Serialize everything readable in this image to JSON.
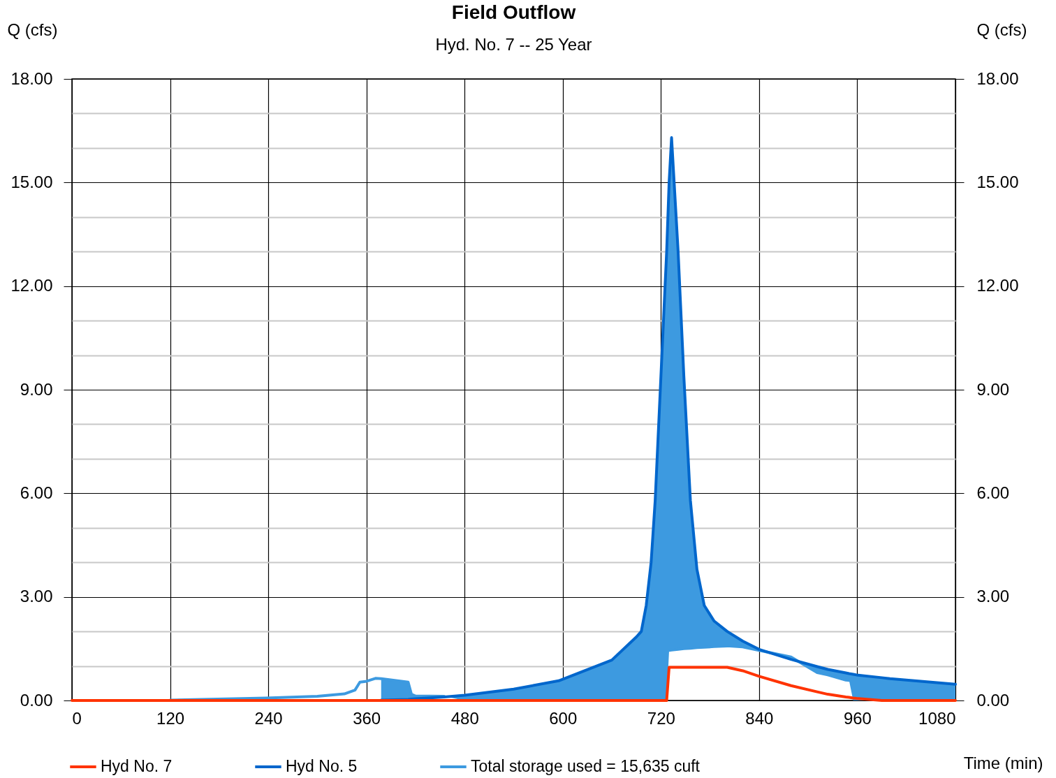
{
  "chart_data": {
    "type": "line",
    "title": "Field Outflow",
    "subtitle": "Hyd. No. 7 -- 25 Year",
    "xlabel": "Time (min)",
    "ylabel": "Q (cfs)",
    "y2label": "Q (cfs)",
    "x": [
      0,
      120,
      237,
      300,
      333,
      346,
      352,
      359,
      371,
      378,
      411,
      415,
      420,
      455,
      480,
      540,
      595,
      660,
      690,
      696,
      702,
      708,
      713,
      720,
      727,
      730,
      733,
      741,
      748,
      756,
      764,
      773,
      785,
      801,
      820,
      840,
      879,
      911,
      924,
      946,
      950,
      955,
      959,
      990,
      1000,
      1080
    ],
    "series": [
      {
        "name": "Hyd No. 7",
        "color": "#ff3300",
        "values": [
          0,
          0,
          0,
          0,
          0,
          0,
          0,
          0,
          0,
          0,
          0,
          0,
          0,
          0,
          0,
          0,
          0,
          0,
          0,
          0,
          0,
          0,
          0,
          0,
          0,
          0.96,
          0.96,
          0.96,
          0.96,
          0.96,
          0.96,
          0.96,
          0.96,
          0.96,
          0.86,
          0.7,
          0.43,
          0.25,
          0.18,
          0.1,
          0.09,
          0.07,
          0.06,
          0,
          0,
          0
        ]
      },
      {
        "name": "Hyd No. 5",
        "color": "#0066cc",
        "values": [
          null,
          null,
          null,
          null,
          null,
          null,
          null,
          null,
          null,
          0.01,
          0.03,
          0.04,
          0.05,
          0.1,
          0.15,
          0.33,
          0.57,
          1.17,
          1.84,
          2.0,
          2.75,
          4.0,
          5.8,
          9.4,
          13.0,
          15.0,
          16.3,
          13.0,
          9.4,
          5.8,
          3.8,
          2.75,
          2.3,
          2.0,
          1.72,
          1.48,
          1.19,
          0.98,
          0.9,
          0.8,
          0.78,
          0.76,
          0.74,
          0.66,
          0.63,
          0.47
        ]
      },
      {
        "name": "Total storage used = 15,635 cuft",
        "color": "#3d9ae0",
        "values": [
          null,
          0.01,
          0.07,
          0.12,
          0.19,
          0.3,
          0.53,
          0.55,
          0.64,
          0.63,
          0.53,
          0.18,
          0.13,
          0.12,
          null,
          null,
          null,
          null,
          null,
          null,
          null,
          null,
          null,
          null,
          null,
          1.45,
          1.46,
          1.48,
          1.5,
          1.51,
          1.53,
          1.54,
          1.56,
          1.58,
          1.55,
          1.45,
          1.26,
          0.81,
          0.74,
          0.59,
          0.58,
          null,
          null,
          null,
          null,
          null
        ],
        "lower": [
          null,
          null,
          null,
          null,
          null,
          null,
          null,
          null,
          null,
          0.63,
          0.53,
          0.18,
          0.13,
          0.12,
          0,
          0,
          0,
          0,
          0,
          0,
          0,
          0,
          0,
          0,
          0,
          1.45,
          1.46,
          1.48,
          1.5,
          1.51,
          1.53,
          1.54,
          1.56,
          1.58,
          1.55,
          1.45,
          1.26,
          0.81,
          0.74,
          0.59,
          0.58,
          0,
          0,
          0,
          0,
          0
        ],
        "upper": [
          null,
          null,
          null,
          null,
          null,
          null,
          null,
          null,
          null,
          0.01,
          0.03,
          0.04,
          0.05,
          0.1,
          0.15,
          0.33,
          0.57,
          1.17,
          1.84,
          2.0,
          2.75,
          4.0,
          5.8,
          9.4,
          13.0,
          15.0,
          16.3,
          13.0,
          9.4,
          5.8,
          3.8,
          2.75,
          2.3,
          2.0,
          1.72,
          1.48,
          1.19,
          0.98,
          0.9,
          0.8,
          0.78,
          0.76,
          0.74,
          0.66,
          0.63,
          0.47
        ]
      }
    ],
    "xlim": [
      0,
      1080
    ],
    "xticks": [
      0,
      120,
      240,
      360,
      480,
      600,
      720,
      840,
      960,
      1080
    ],
    "ylim": [
      0,
      18
    ],
    "yticks": [
      {
        "value": 0,
        "label": "0.00"
      },
      {
        "value": 1,
        "label": null
      },
      {
        "value": 2,
        "label": null
      },
      {
        "value": 3,
        "label": "3.00"
      },
      {
        "value": 4,
        "label": null
      },
      {
        "value": 5,
        "label": null
      },
      {
        "value": 6,
        "label": "6.00"
      },
      {
        "value": 7,
        "label": null
      },
      {
        "value": 8,
        "label": null
      },
      {
        "value": 9,
        "label": "9.00"
      },
      {
        "value": 10,
        "label": null
      },
      {
        "value": 11,
        "label": null
      },
      {
        "value": 12,
        "label": "12.00"
      },
      {
        "value": 13,
        "label": null
      },
      {
        "value": 14,
        "label": null
      },
      {
        "value": 15,
        "label": "15.00"
      },
      {
        "value": 16,
        "label": null
      },
      {
        "value": 17,
        "label": null
      },
      {
        "value": 18,
        "label": "18.00"
      }
    ],
    "y2lim": [
      0,
      18
    ],
    "y2ticks": [
      {
        "value": 0,
        "label": "0.00"
      },
      {
        "value": 3,
        "label": "3.00"
      },
      {
        "value": 6,
        "label": "6.00"
      },
      {
        "value": 9,
        "label": "9.00"
      },
      {
        "value": 12,
        "label": "12.00"
      },
      {
        "value": 15,
        "label": "15.00"
      },
      {
        "value": 18,
        "label": "18.00"
      }
    ],
    "grid": true,
    "legend": "bottom left"
  }
}
